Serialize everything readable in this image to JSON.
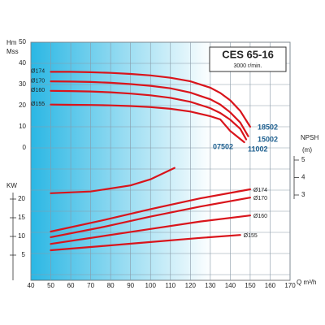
{
  "chart_data": {
    "type": "line",
    "title": "CES 65-16",
    "subtitle": "3000 r/min.",
    "x_label": "Q m³/h",
    "xlim": [
      40,
      170
    ],
    "xticks": [
      40,
      50,
      60,
      70,
      80,
      90,
      100,
      110,
      120,
      130,
      140,
      150,
      160,
      170
    ],
    "grid": true,
    "head": {
      "label": [
        "Hm",
        "Mss"
      ],
      "ylim": [
        0,
        50
      ],
      "yticks": [
        0,
        10,
        20,
        30,
        40,
        50
      ],
      "series": [
        {
          "name": "Ø174",
          "color": "#d9141b",
          "x": [
            50,
            60,
            70,
            80,
            90,
            100,
            110,
            120,
            130,
            135,
            140,
            145,
            150
          ],
          "values": [
            36,
            36,
            35.8,
            35.5,
            35,
            34.3,
            33.2,
            31.5,
            28.5,
            26,
            22.5,
            17.5,
            10
          ]
        },
        {
          "name": "Ø170",
          "color": "#d9141b",
          "x": [
            50,
            60,
            70,
            80,
            90,
            100,
            110,
            120,
            130,
            135,
            140,
            145,
            149
          ],
          "values": [
            31.5,
            31.4,
            31.2,
            30.8,
            30.2,
            29.4,
            28.2,
            26.2,
            23,
            20.5,
            16.8,
            12,
            5.5
          ]
        },
        {
          "name": "Ø160",
          "color": "#d9141b",
          "x": [
            50,
            60,
            70,
            80,
            90,
            100,
            110,
            120,
            130,
            135,
            140,
            145,
            148
          ],
          "values": [
            27,
            26.9,
            26.7,
            26.3,
            25.7,
            24.9,
            23.7,
            21.8,
            18.8,
            16.5,
            13.3,
            9,
            4
          ]
        },
        {
          "name": "Ø155",
          "color": "#d9141b",
          "x": [
            50,
            60,
            70,
            80,
            90,
            100,
            110,
            120,
            130,
            135,
            140,
            147
          ],
          "values": [
            20.5,
            20.4,
            20.3,
            20.1,
            19.8,
            19.3,
            18.5,
            17.2,
            15,
            13.5,
            8,
            2.7
          ]
        }
      ]
    },
    "power": {
      "label": "KW",
      "ylim": [
        0,
        20
      ],
      "yticks": [
        5,
        10,
        15,
        20
      ],
      "series": [
        {
          "name": "Ø174",
          "color": "#d9141b",
          "x": [
            50,
            75,
            100,
            125,
            150
          ],
          "values": [
            11.3,
            14.2,
            17.3,
            20.2,
            22.6
          ]
        },
        {
          "name": "Ø170",
          "color": "#d9141b",
          "x": [
            50,
            75,
            100,
            125,
            150
          ],
          "values": [
            9.8,
            12.4,
            15.3,
            18,
            20.4
          ]
        },
        {
          "name": "Ø160",
          "color": "#d9141b",
          "x": [
            50,
            75,
            100,
            125,
            150
          ],
          "values": [
            8,
            10,
            12,
            14,
            15.6
          ]
        },
        {
          "name": "Ø155",
          "color": "#d9141b",
          "x": [
            50,
            75,
            100,
            125,
            145
          ],
          "values": [
            6.3,
            7.4,
            8.5,
            9.6,
            10.4
          ]
        }
      ]
    },
    "npsh": {
      "label": [
        "NPSH",
        "(m)"
      ],
      "ylim": [
        3,
        5
      ],
      "yticks": [
        3,
        4,
        5
      ],
      "series": [
        {
          "color": "#d9141b",
          "x": [
            50,
            70,
            90,
            100,
            112
          ],
          "values": [
            3.1,
            3.2,
            3.55,
            3.9,
            4.55
          ]
        }
      ]
    },
    "annotations": [
      "18502",
      "15002",
      "11002",
      "07502"
    ]
  }
}
